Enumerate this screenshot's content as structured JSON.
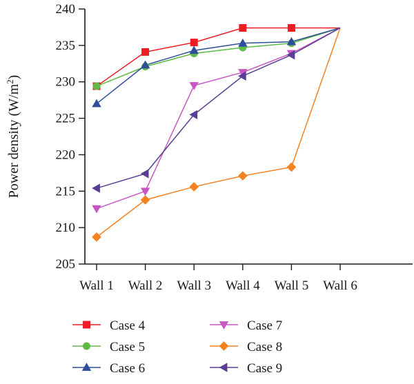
{
  "chart_data": {
    "type": "line",
    "categories": [
      "Wall 1",
      "Wall 2",
      "Wall 3",
      "Wall 4",
      "Wall 5",
      "Wall 6"
    ],
    "ylabel_main": "Power density (W/m",
    "ylabel_sup": "2",
    "ylabel_close": ")",
    "ylim": [
      205,
      240
    ],
    "yticks": [
      205,
      210,
      215,
      220,
      225,
      230,
      235,
      240
    ],
    "grid": false,
    "legend_placement": "bottom",
    "series": [
      {
        "name": "Case 4",
        "color": "#ee1c25",
        "marker": "square",
        "values": [
          229.4,
          234.1,
          235.4,
          237.4,
          237.4,
          237.4
        ]
      },
      {
        "name": "Case 5",
        "color": "#5dbb46",
        "marker": "circle",
        "values": [
          229.4,
          232.1,
          233.9,
          234.7,
          235.3,
          237.4
        ]
      },
      {
        "name": "Case 6",
        "color": "#2e4e9c",
        "marker": "triangle-up",
        "values": [
          227.0,
          232.3,
          234.3,
          235.3,
          235.5,
          237.4
        ]
      },
      {
        "name": "Case 7",
        "color": "#c757c2",
        "marker": "triangle-down",
        "values": [
          212.6,
          215.0,
          229.5,
          231.3,
          233.9,
          237.4
        ]
      },
      {
        "name": "Case 8",
        "color": "#f58220",
        "marker": "diamond",
        "values": [
          208.7,
          213.8,
          215.6,
          217.1,
          218.3,
          237.4
        ]
      },
      {
        "name": "Case 9",
        "color": "#5a3d94",
        "marker": "triangle-left",
        "values": [
          215.4,
          217.4,
          225.5,
          230.8,
          233.7,
          237.4
        ]
      }
    ]
  }
}
